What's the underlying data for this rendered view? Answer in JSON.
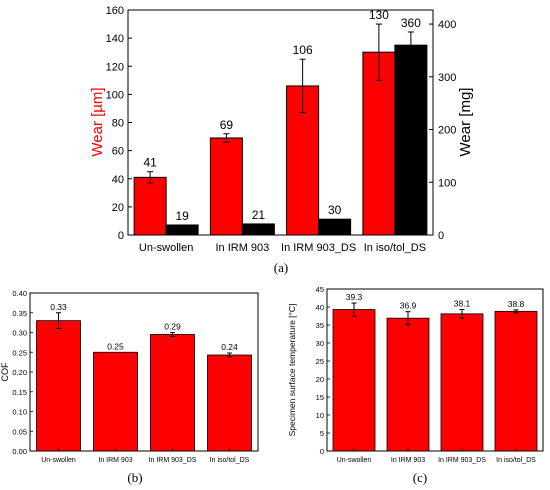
{
  "chart_data": [
    {
      "type": "bar",
      "panel_label": "(a)",
      "categories": [
        "Un-swollen",
        "In IRM 903",
        "In IRM 903_DS",
        "In iso/tol_DS"
      ],
      "series": [
        {
          "axis": "left",
          "color": "#ff0000",
          "values": [
            41,
            69,
            106,
            130
          ],
          "errors": [
            4,
            3,
            19,
            20
          ],
          "value_labels": [
            "41",
            "69",
            "106",
            "130"
          ]
        },
        {
          "axis": "right",
          "color": "#000000",
          "values": [
            19,
            21,
            30,
            360
          ],
          "errors": [
            0,
            0,
            0,
            25
          ],
          "value_labels": [
            "19",
            "21",
            "30",
            "360"
          ]
        }
      ],
      "ylabel_left": "Wear [µm]",
      "ylabel_right": "Wear [mg]",
      "ylim_left": [
        0,
        160
      ],
      "yticks_left": [
        "0",
        "20",
        "40",
        "60",
        "80",
        "100",
        "120",
        "140",
        "160"
      ],
      "ylim_right": [
        0,
        426.67
      ],
      "yticks_right": [
        "0",
        "100",
        "200",
        "300",
        "400"
      ],
      "grid": false
    },
    {
      "type": "bar",
      "panel_label": "(b)",
      "categories": [
        "Un-swollen",
        "In IRM 903",
        "In IRM 903_DS",
        "In iso/tol_DS"
      ],
      "series": [
        {
          "color": "#ff0000",
          "values": [
            0.33,
            0.25,
            0.295,
            0.243
          ],
          "errors": [
            0.02,
            0,
            0.005,
            0.005
          ],
          "value_labels": [
            "0.33",
            "0.25",
            "0.29",
            "0.24"
          ]
        }
      ],
      "ylabel": "COF",
      "ylim": [
        0,
        0.4
      ],
      "yticks": [
        "0.00",
        "0.05",
        "0.10",
        "0.15",
        "0.20",
        "0.25",
        "0.30",
        "0.35",
        "0.40"
      ],
      "grid": false
    },
    {
      "type": "bar",
      "panel_label": "(c)",
      "categories": [
        "Un-swollen",
        "In IRM 903",
        "In IRM 903_DS",
        "In iso/tol_DS"
      ],
      "series": [
        {
          "color": "#ff0000",
          "values": [
            39.3,
            36.9,
            38.1,
            38.8
          ],
          "errors": [
            1.8,
            1.8,
            1.2,
            0.4
          ],
          "value_labels": [
            "39.3",
            "36.9",
            "38.1",
            "38.8"
          ]
        }
      ],
      "ylabel": "Specimen surface temperature [°C]",
      "ylim": [
        0,
        45
      ],
      "yticks": [
        "0",
        "5",
        "10",
        "15",
        "20",
        "25",
        "30",
        "35",
        "40",
        "45"
      ],
      "grid": false
    }
  ]
}
